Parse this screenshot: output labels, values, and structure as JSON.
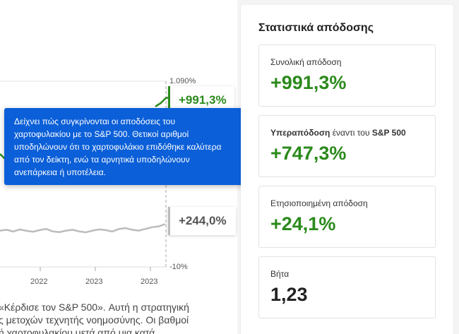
{
  "chart": {
    "y_top_label": "1.090%",
    "y_bottom_label": "-10%",
    "x_labels": [
      "2022",
      "2023",
      "2023"
    ],
    "portfolio_tag": "+991,3%",
    "benchmark_tag": "+244,0%",
    "colors": {
      "portfolio": "#2b8a1c",
      "benchmark": "#bbbbbb"
    }
  },
  "chart_data": {
    "type": "line",
    "title": "",
    "xlabel": "",
    "ylabel": "",
    "ylim": [
      -10,
      1090
    ],
    "x_tick_labels": [
      "2022",
      "2023",
      "2023"
    ],
    "series": [
      {
        "name": "",
        "end_value": 991.3,
        "values": [
          940,
          950,
          960,
          975,
          991.3
        ]
      },
      {
        "name": "",
        "end_value": 244.0,
        "values": [
          205,
          210,
          200,
          212,
          204,
          198,
          208,
          215,
          200,
          196,
          205,
          210,
          200,
          195,
          205,
          212,
          208,
          200,
          215,
          220,
          210,
          205,
          215,
          225,
          230,
          244
        ]
      }
    ]
  },
  "description": {
    "lines": [
      "«Κέρδισε τον S&P 500». Αυτή η στρατηγική",
      "ς μετοχών τεχνητής νοημοσύνης. Οι βαθμοί",
      "ή χαρτοφυλακίου μετά από μια κατά"
    ]
  },
  "tooltip": {
    "lines": [
      "Δείχνει πώς συγκρίνονται οι αποδόσεις του",
      "χαρτοφυλακίου με το S&P 500. Θετικοί αριθμοί",
      "υποδηλώνουν ότι το χαρτοφυλάκιο επιδόθηκε καλύτερα",
      "από τον δείκτη, ενώ τα αρνητικά υποδηλώνουν",
      "ανεπάρκεια ή υποτέλεια."
    ]
  },
  "stats": {
    "title": "Στατιστικά απόδοσης",
    "total": {
      "label": "Συνολική απόδοση",
      "value": "+991,3%"
    },
    "outperformance": {
      "label_bold": "Υπεραπόδοση",
      "label_mid": " έναντι του ",
      "label_bold2": "S&P 500",
      "value": "+747,3%"
    },
    "annualized": {
      "label": "Ετησιοποιημένη απόδοση",
      "value": "+24,1%"
    },
    "beta": {
      "label": "Βήτα",
      "value": "1,23"
    }
  }
}
